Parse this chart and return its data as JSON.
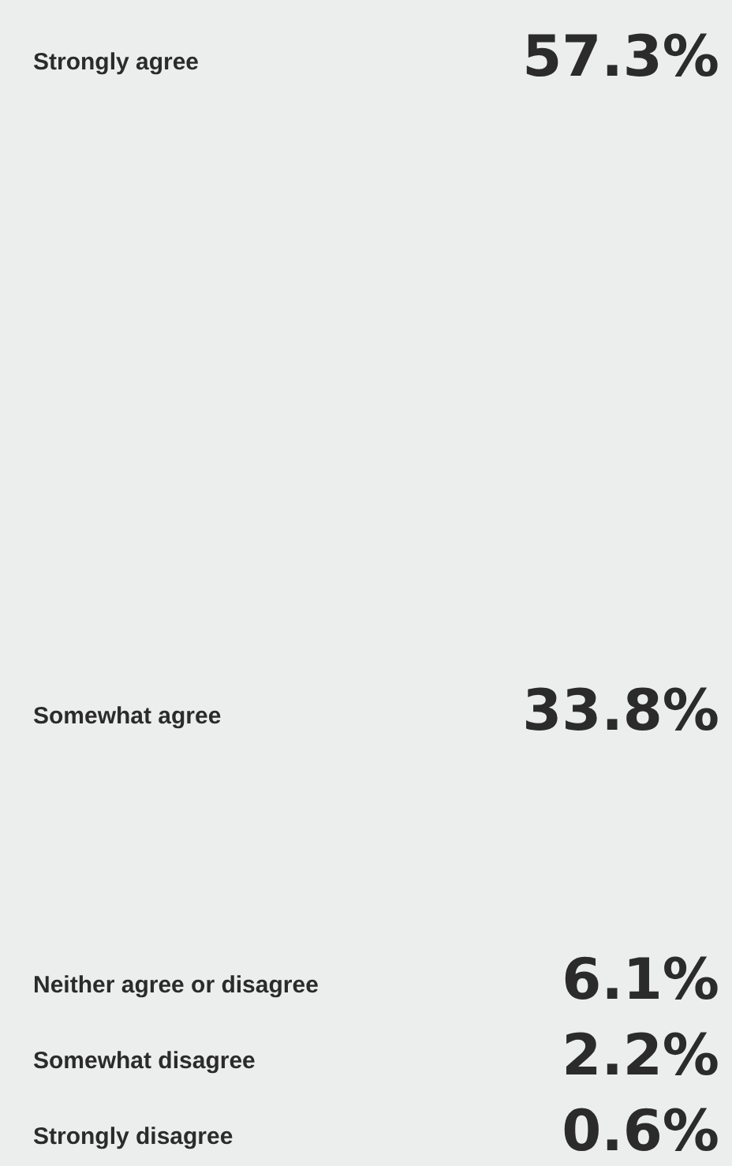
{
  "chart_data": {
    "type": "other",
    "categories": [
      "Strongly agree",
      "Somewhat agree",
      "Neither agree or disagree",
      "Somewhat disagree",
      "Strongly disagree"
    ],
    "values": [
      57.3,
      33.8,
      6.1,
      2.2,
      0.6
    ],
    "value_labels": [
      "57.3%",
      "33.8%",
      "6.1%",
      "2.2%",
      "0.6%"
    ]
  }
}
